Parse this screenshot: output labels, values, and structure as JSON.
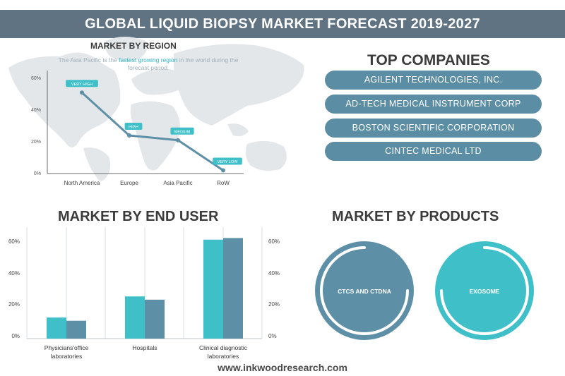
{
  "header": {
    "title": "GLOBAL LIQUID BIOPSY MARKET FORECAST 2019-2027"
  },
  "region": {
    "title": "MARKET BY REGION",
    "note_before": "The Asia Pacific is the ",
    "note_highlight": "fastest growing region",
    "note_after": " in the world during the forecast period."
  },
  "companies": {
    "title": "TOP COMPANIES",
    "items": [
      "AGILENT TECHNOLOGIES, INC.",
      "AD-TECH MEDICAL INSTRUMENT CORP",
      "BOSTON SCIENTIFIC CORPORATION",
      "CINTEC MEDICAL LTD"
    ]
  },
  "end_user": {
    "title": "MARKET BY END USER"
  },
  "products": {
    "title": "MARKET BY PRODUCTS",
    "items": [
      "CTCS AND CTDNA",
      "EXOSOME"
    ],
    "colors": [
      "#5d8fa7",
      "#3fc0c9"
    ]
  },
  "footer": {
    "url": "www.inkwoodresearch.com"
  },
  "colors": {
    "accent": "#3fc0c9",
    "dark_series": "#5d8fa7",
    "header_bg": "#5f7383",
    "map": "#e3e7ea"
  },
  "chart_data": [
    {
      "type": "line",
      "title": "MARKET BY REGION",
      "categories": [
        "North America",
        "Europe",
        "Asia Pacific",
        "RoW"
      ],
      "values": [
        51,
        24,
        21,
        2
      ],
      "point_labels": [
        "VERY HIGH",
        "HIGH",
        "MEDIUM",
        "VERY LOW"
      ],
      "y_ticks": [
        "0%",
        "20%",
        "40%",
        "60%"
      ],
      "ylim": [
        0,
        60
      ],
      "grid": false
    },
    {
      "type": "bar",
      "title": "MARKET BY END USER",
      "categories": [
        "Physicians'office laboratories",
        "Hospitals",
        "Clinical diagnostic laboratories"
      ],
      "category_lines": [
        [
          "Physicians'office",
          "laboratories"
        ],
        [
          "Hospitals"
        ],
        [
          "Clinical diagnostic",
          "laboratories"
        ]
      ],
      "series": [
        {
          "values": [
            13,
            26,
            61
          ]
        },
        {
          "values": [
            11,
            24,
            62
          ]
        }
      ],
      "series_colors": [
        "#3fc0c9",
        "#5d8fa7"
      ],
      "y_ticks": [
        "0%",
        "20%",
        "40%",
        "60%"
      ],
      "ylim": [
        0,
        60
      ],
      "grid": true
    }
  ]
}
